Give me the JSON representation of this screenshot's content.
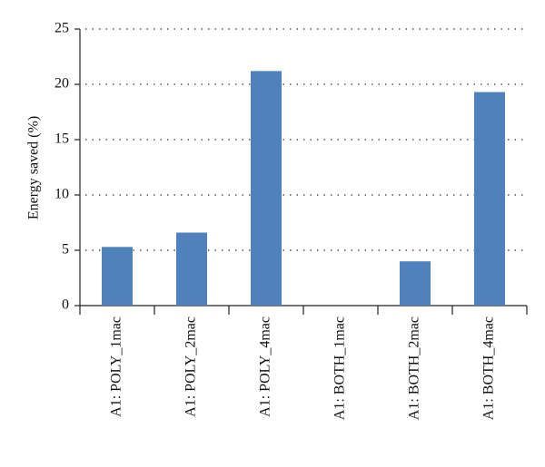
{
  "chart_data": {
    "type": "bar",
    "y_label": "Energy saved (%)",
    "categories": [
      "A1: POLY_1mac",
      "A1: POLY_2mac",
      "A1: POLY_4mac",
      "A1: BOTH_1mac",
      "A1: BOTH_2mac",
      "A1: BOTH_4mac"
    ],
    "values": [
      5.3,
      6.6,
      21.2,
      0,
      4.0,
      19.3
    ],
    "color": "#4f81bd",
    "ylim": [
      0,
      25
    ],
    "yticks": [
      0,
      5,
      10,
      15,
      20,
      25
    ],
    "grid": true
  }
}
